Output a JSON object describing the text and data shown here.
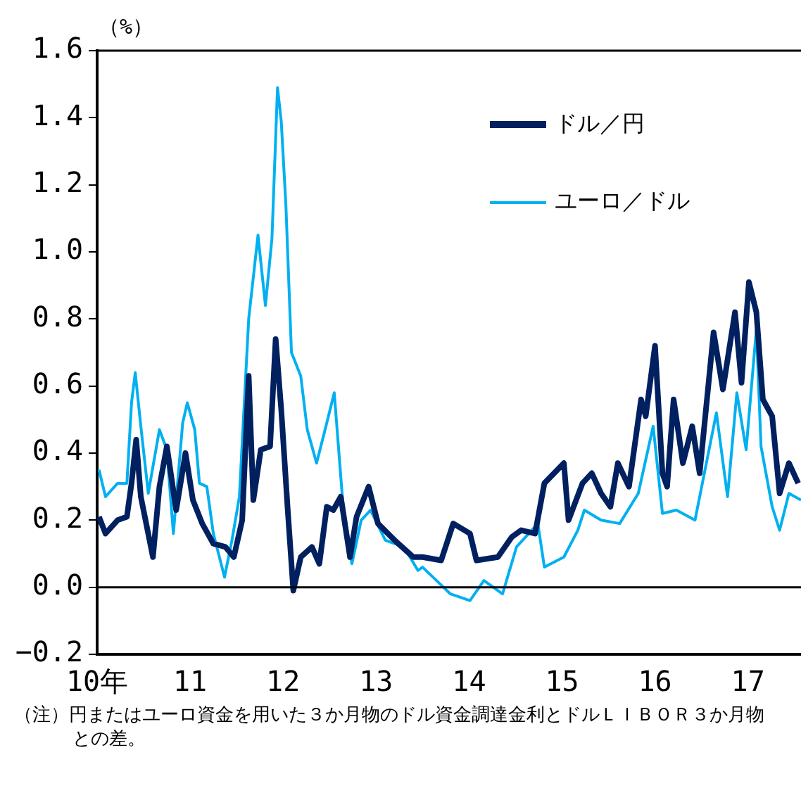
{
  "chart_data": {
    "type": "line",
    "ylabel": "（%）",
    "xlim": [
      10,
      17.57
    ],
    "xticks": [
      {
        "value": 10,
        "label": "10年"
      },
      11,
      12,
      13,
      14,
      15,
      16,
      17
    ],
    "ylim": [
      -0.2,
      1.6
    ],
    "yticks": [
      {
        "value": -0.2,
        "label": "−0.2"
      },
      {
        "value": 0,
        "label": "0.0"
      },
      {
        "value": 0.2,
        "label": "0.2"
      },
      {
        "value": 0.4,
        "label": "0.4"
      },
      {
        "value": 0.6,
        "label": "0.6"
      },
      {
        "value": 0.8,
        "label": "0.8"
      },
      {
        "value": 1,
        "label": "1.0"
      },
      {
        "value": 1.2,
        "label": "1.2"
      },
      {
        "value": 1.4,
        "label": "1.4"
      },
      {
        "value": 1.6,
        "label": "1.6"
      }
    ],
    "ref_lines": [
      {
        "axis": "y",
        "value": 0
      }
    ],
    "legend": "top right",
    "series": [
      {
        "name": "ドル／円",
        "color": "#002060",
        "x": [
          10.02,
          10.09,
          10.22,
          10.32,
          10.37,
          10.42,
          10.47,
          10.6,
          10.67,
          10.75,
          10.85,
          10.95,
          11.03,
          11.13,
          11.25,
          11.38,
          11.47,
          11.56,
          11.63,
          11.68,
          11.76,
          11.86,
          11.92,
          11.98,
          12.05,
          12.11,
          12.19,
          12.31,
          12.39,
          12.47,
          12.54,
          12.62,
          12.72,
          12.79,
          12.92,
          13.02,
          13.2,
          13.4,
          13.5,
          13.7,
          13.83,
          14.01,
          14.08,
          14.31,
          14.46,
          14.56,
          14.71,
          14.81,
          15.02,
          15.07,
          15.22,
          15.32,
          15.42,
          15.52,
          15.6,
          15.72,
          15.85,
          15.9,
          16,
          16.08,
          16.13,
          16.2,
          16.3,
          16.4,
          16.48,
          16.63,
          16.73,
          16.86,
          16.93,
          17.01,
          17.09,
          17.16,
          17.26,
          17.34,
          17.44,
          17.54
        ],
        "values": [
          0.21,
          0.16,
          0.2,
          0.21,
          0.31,
          0.44,
          0.27,
          0.09,
          0.3,
          0.42,
          0.23,
          0.4,
          0.26,
          0.19,
          0.13,
          0.12,
          0.09,
          0.2,
          0.63,
          0.26,
          0.41,
          0.42,
          0.74,
          0.53,
          0.23,
          -0.01,
          0.09,
          0.12,
          0.07,
          0.24,
          0.23,
          0.27,
          0.09,
          0.21,
          0.3,
          0.19,
          0.14,
          0.09,
          0.09,
          0.08,
          0.19,
          0.16,
          0.08,
          0.09,
          0.15,
          0.17,
          0.16,
          0.31,
          0.37,
          0.2,
          0.31,
          0.34,
          0.28,
          0.24,
          0.37,
          0.3,
          0.56,
          0.51,
          0.72,
          0.34,
          0.3,
          0.56,
          0.37,
          0.48,
          0.34,
          0.76,
          0.59,
          0.82,
          0.61,
          0.91,
          0.82,
          0.56,
          0.51,
          0.28,
          0.37,
          0.31
        ]
      },
      {
        "name": "ユーロ／ドル",
        "color": "#00b0f0",
        "x": [
          10.02,
          10.09,
          10.22,
          10.32,
          10.37,
          10.41,
          10.47,
          10.55,
          10.67,
          10.75,
          10.82,
          10.92,
          10.97,
          11.05,
          11.1,
          11.18,
          11.25,
          11.37,
          11.45,
          11.53,
          11.63,
          11.73,
          11.81,
          11.88,
          11.94,
          11.98,
          12.03,
          12.09,
          12.19,
          12.26,
          12.36,
          12.47,
          12.55,
          12.64,
          12.74,
          12.84,
          12.94,
          13.1,
          13.3,
          13.45,
          13.5,
          13.65,
          13.8,
          14.01,
          14.16,
          14.36,
          14.51,
          14.74,
          14.81,
          15.02,
          15.17,
          15.24,
          15.42,
          15.62,
          15.82,
          15.98,
          16.08,
          16.23,
          16.43,
          16.66,
          16.78,
          16.88,
          16.98,
          17.09,
          17.14,
          17.26,
          17.34,
          17.44,
          17.57
        ],
        "values": [
          0.35,
          0.27,
          0.31,
          0.31,
          0.55,
          0.64,
          0.48,
          0.28,
          0.47,
          0.41,
          0.16,
          0.49,
          0.55,
          0.47,
          0.31,
          0.3,
          0.16,
          0.03,
          0.14,
          0.27,
          0.8,
          1.05,
          0.84,
          1.04,
          1.49,
          1.39,
          1.14,
          0.7,
          0.63,
          0.47,
          0.37,
          0.49,
          0.58,
          0.26,
          0.07,
          0.2,
          0.23,
          0.14,
          0.12,
          0.05,
          0.06,
          0.02,
          -0.02,
          -0.04,
          0.02,
          -0.02,
          0.12,
          0.19,
          0.06,
          0.09,
          0.17,
          0.23,
          0.2,
          0.19,
          0.28,
          0.48,
          0.22,
          0.23,
          0.2,
          0.52,
          0.27,
          0.58,
          0.41,
          0.77,
          0.42,
          0.24,
          0.17,
          0.28,
          0.26
        ]
      }
    ],
    "annotations": [
      "（注）円またはユーロ資金を用いた３か月物のドル資金調達金利とドルＬＩＢＯＲ３か月物との差。"
    ]
  }
}
